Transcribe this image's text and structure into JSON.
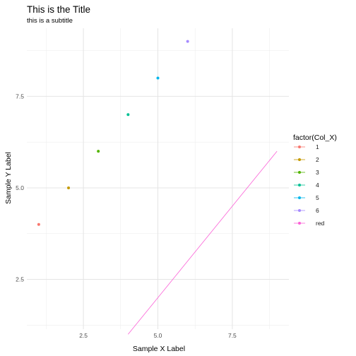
{
  "chart_data": {
    "type": "scatter",
    "title": "This is the Title",
    "subtitle": "this is a subtitle",
    "xlabel": "Sample X Label",
    "ylabel": "Sample Y Label",
    "xlim": [
      0.6,
      9.4
    ],
    "ylim": [
      1.14,
      9.36
    ],
    "x_ticks": [
      2.5,
      5.0,
      7.5
    ],
    "x_tick_labels": [
      "2.5",
      "5.0",
      "7.5"
    ],
    "y_ticks": [
      2.5,
      5.0,
      7.5
    ],
    "y_tick_labels": [
      "2.5",
      "5.0",
      "7.5"
    ],
    "grid": true,
    "legend": {
      "title": "factor(Col_X)",
      "placement": "right",
      "entries": [
        "1",
        "2",
        "3",
        "4",
        "5",
        "6",
        "red"
      ]
    },
    "series": [
      {
        "name": "1",
        "color": "#F8766D",
        "type": "point",
        "x": [
          1
        ],
        "y": [
          4
        ]
      },
      {
        "name": "2",
        "color": "#C49A00",
        "type": "point",
        "x": [
          2
        ],
        "y": [
          5
        ]
      },
      {
        "name": "3",
        "color": "#53B400",
        "type": "point",
        "x": [
          3
        ],
        "y": [
          6
        ]
      },
      {
        "name": "4",
        "color": "#00C094",
        "type": "point",
        "x": [
          4
        ],
        "y": [
          7
        ]
      },
      {
        "name": "5",
        "color": "#00B6EB",
        "type": "point",
        "x": [
          5
        ],
        "y": [
          8
        ]
      },
      {
        "name": "6",
        "color": "#A58AFF",
        "type": "point",
        "x": [
          6
        ],
        "y": [
          9
        ]
      },
      {
        "name": "red",
        "color": "#FB61D7",
        "type": "line",
        "x": [
          4,
          9
        ],
        "y": [
          1,
          6
        ]
      }
    ]
  }
}
